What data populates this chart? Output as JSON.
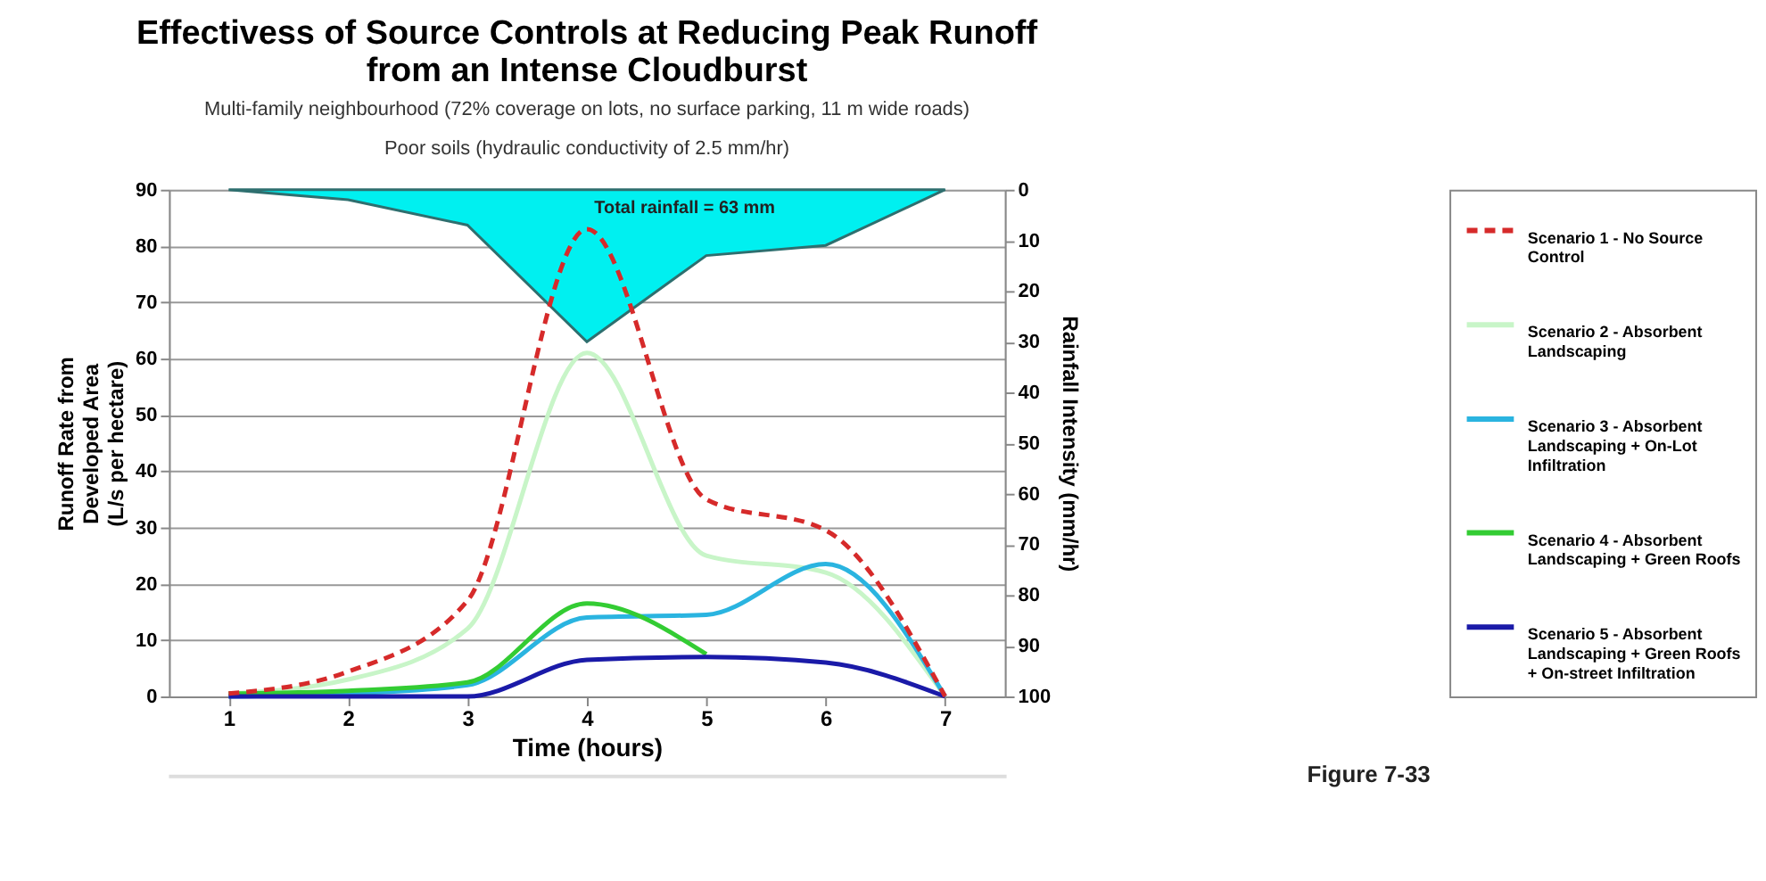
{
  "chart_data": {
    "type": "line",
    "title": "Effectivess of Source Controls at Reducing Peak Runoff\nfrom an Intense Cloudburst",
    "subtitle": "Multi-family neighbourhood (72% coverage on lots, no surface parking, 11 m wide roads)\nPoor soils (hydraulic conductivity of 2.5 mm/hr)",
    "xlabel": "Time (hours)",
    "ylabel": "Runoff Rate from\nDeveloped Area\n(L/s per hectare)",
    "y2label": "Rainfall Intensity (mm/hr)",
    "categories": [
      "1",
      "2",
      "3",
      "4",
      "5",
      "6",
      "7"
    ],
    "series": [
      {
        "type": "area",
        "axis": "y2",
        "color": "#00f0f0",
        "values": [
          0,
          2,
          7,
          30,
          13,
          11,
          0
        ]
      },
      {
        "name": "Scenario 1 - No Source Control",
        "color": "#d62a2a",
        "line_style": "dashed",
        "values": [
          0.5,
          4.4,
          17,
          83,
          35,
          29.5,
          0
        ]
      },
      {
        "name": "Scenario 2 - Absorbent Landscaping",
        "color": "#c8f5c8",
        "line_style": "solid",
        "values": [
          0.5,
          3,
          12,
          61,
          25,
          22,
          0
        ]
      },
      {
        "name": "Scenario 3 - Absorbent Landscaping + On-Lot Infiltration",
        "color": "#2ab4e0",
        "line_style": "solid",
        "values": [
          0,
          0.5,
          2,
          14,
          14.5,
          23.5,
          0
        ]
      },
      {
        "name": "Scenario 4 - Absorbent Landscaping + Green Roofs",
        "color": "#33cc33",
        "line_style": "solid",
        "values": [
          0.5,
          1,
          2.5,
          16.5,
          7.5,
          null,
          null
        ]
      },
      {
        "name": "Scenario 5 - Absorbent Landscaping + Green Roofs + On-street Infiltration",
        "color": "#1a1aa8",
        "line_style": "solid",
        "values": [
          0,
          0,
          0,
          6.5,
          7,
          6,
          0
        ]
      }
    ],
    "ylim": [
      0,
      90
    ],
    "yticks": [
      0,
      10,
      20,
      30,
      40,
      50,
      60,
      70,
      80,
      90
    ],
    "y2lim": [
      100,
      0
    ],
    "y2ticks": [
      0,
      10,
      20,
      30,
      40,
      50,
      60,
      70,
      80,
      90,
      100
    ],
    "grid": "y",
    "legend": "right",
    "annotations": [
      "Total rainfall = 63 mm",
      "Figure 7-33"
    ]
  }
}
